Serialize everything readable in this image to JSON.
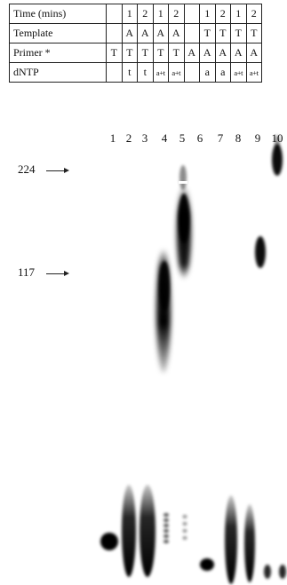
{
  "table": {
    "rows": [
      {
        "label": "Time (mins)",
        "cells": [
          "",
          "1",
          "2",
          "1",
          "2",
          "",
          "1",
          "2",
          "1",
          "2"
        ]
      },
      {
        "label": "Template",
        "cells": [
          "",
          "A",
          "A",
          "A",
          "A",
          "",
          "T",
          "T",
          "T",
          "T"
        ]
      },
      {
        "label": "Primer *",
        "cells": [
          "T",
          "T",
          "T",
          "T",
          "T",
          "A",
          "A",
          "A",
          "A",
          "A"
        ]
      },
      {
        "label": "dNTP",
        "cells": [
          "",
          "t",
          "t",
          "a+t",
          "a+t",
          "",
          "a",
          "a",
          "a+t",
          "a+t"
        ]
      }
    ]
  },
  "lanes": [
    "1",
    "2",
    "3",
    "4",
    "5",
    "6",
    "7",
    "8",
    "9",
    "10"
  ],
  "markers": [
    {
      "label": "224"
    },
    {
      "label": "117"
    }
  ]
}
